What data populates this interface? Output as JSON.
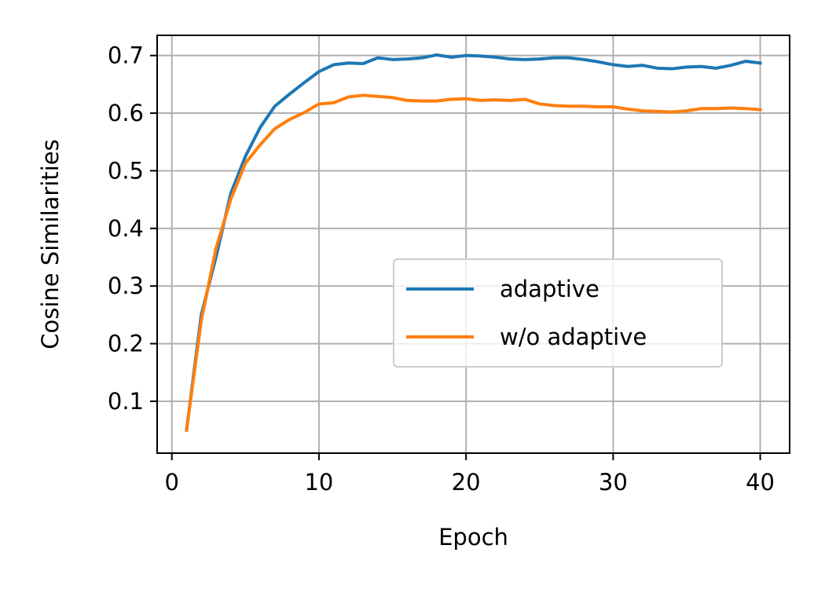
{
  "chart_data": {
    "type": "line",
    "xlabel": "Epoch",
    "ylabel": "Cosine Similarities",
    "xlim": [
      -1,
      42
    ],
    "ylim": [
      0.01,
      0.735
    ],
    "xticks": [
      0,
      10,
      20,
      30,
      40
    ],
    "xtick_labels": [
      "0",
      "10",
      "20",
      "30",
      "40"
    ],
    "yticks": [
      0.1,
      0.2,
      0.3,
      0.4,
      0.5,
      0.6,
      0.7
    ],
    "ytick_labels": [
      "0.1",
      "0.2",
      "0.3",
      "0.4",
      "0.5",
      "0.6",
      "0.7"
    ],
    "grid": true,
    "legend_position": "center-right",
    "x": [
      1,
      2,
      3,
      4,
      5,
      6,
      7,
      8,
      9,
      10,
      11,
      12,
      13,
      14,
      15,
      16,
      17,
      18,
      19,
      20,
      21,
      22,
      23,
      24,
      25,
      26,
      27,
      28,
      29,
      30,
      31,
      32,
      33,
      34,
      35,
      36,
      37,
      38,
      39,
      40
    ],
    "series": [
      {
        "name": "adaptive",
        "color": "#1f77b4",
        "values": [
          0.05,
          0.25,
          0.35,
          0.46,
          0.525,
          0.575,
          0.612,
          0.633,
          0.653,
          0.672,
          0.684,
          0.687,
          0.686,
          0.696,
          0.693,
          0.694,
          0.696,
          0.701,
          0.697,
          0.7,
          0.699,
          0.697,
          0.694,
          0.693,
          0.694,
          0.696,
          0.696,
          0.693,
          0.689,
          0.684,
          0.681,
          0.683,
          0.678,
          0.677,
          0.68,
          0.681,
          0.678,
          0.683,
          0.69,
          0.687
        ]
      },
      {
        "name": "w/o adaptive",
        "color": "#ff7f0e",
        "values": [
          0.05,
          0.24,
          0.365,
          0.45,
          0.513,
          0.545,
          0.573,
          0.589,
          0.601,
          0.616,
          0.618,
          0.628,
          0.631,
          0.629,
          0.627,
          0.622,
          0.621,
          0.621,
          0.624,
          0.625,
          0.622,
          0.623,
          0.622,
          0.624,
          0.616,
          0.613,
          0.612,
          0.612,
          0.611,
          0.611,
          0.607,
          0.604,
          0.603,
          0.602,
          0.604,
          0.608,
          0.608,
          0.609,
          0.608,
          0.606
        ]
      }
    ]
  }
}
